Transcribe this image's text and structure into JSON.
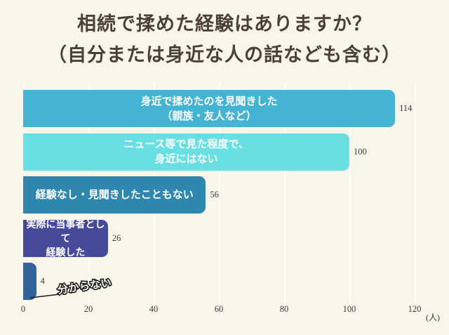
{
  "title": {
    "line1": "相続で揉めた経験はありますか？",
    "line2": "（自分または身近な人の話なども含む）"
  },
  "chart_data": {
    "type": "bar",
    "orientation": "horizontal",
    "title": "相続で揉めた経験はありますか？（自分または身近な人の話なども含む）",
    "xlabel": "",
    "ylabel": "",
    "unit_label": "(人)",
    "xlim": [
      0,
      120
    ],
    "x_ticks": [
      0,
      20,
      40,
      60,
      80,
      100,
      120
    ],
    "grid": "vertical-on",
    "legend": "none",
    "bars": [
      {
        "label": "身近で揉めたのを見聞きした（親族・友人など）",
        "label_lines": [
          "身近で揉めたのを見聞きした",
          "（親族・友人など）"
        ],
        "value": 114,
        "color": "#44B3D4"
      },
      {
        "label": "ニュース等で見た程度で、身近にはない",
        "label_lines": [
          "ニュース等で見た程度で、",
          "身近にはない"
        ],
        "value": 100,
        "color": "#68DFE3"
      },
      {
        "label": "経験なし・見聞きしたこともない",
        "label_lines": [
          "経験なし・見聞きしたこともない"
        ],
        "value": 56,
        "color": "#2F86AE"
      },
      {
        "label": "実際に当事者として経験した",
        "label_lines": [
          "実際に当事者として",
          "経験した"
        ],
        "value": 26,
        "color": "#47499B"
      },
      {
        "label": "分からない",
        "label_lines": [],
        "value": 4,
        "color": "#30639B",
        "annotation": "分からない"
      }
    ],
    "colors": {
      "background": "#F8F5EB",
      "title_text": "#4C4034",
      "value_text": "#3C3C3C",
      "bar_label_text": "#FFFFFF"
    }
  }
}
